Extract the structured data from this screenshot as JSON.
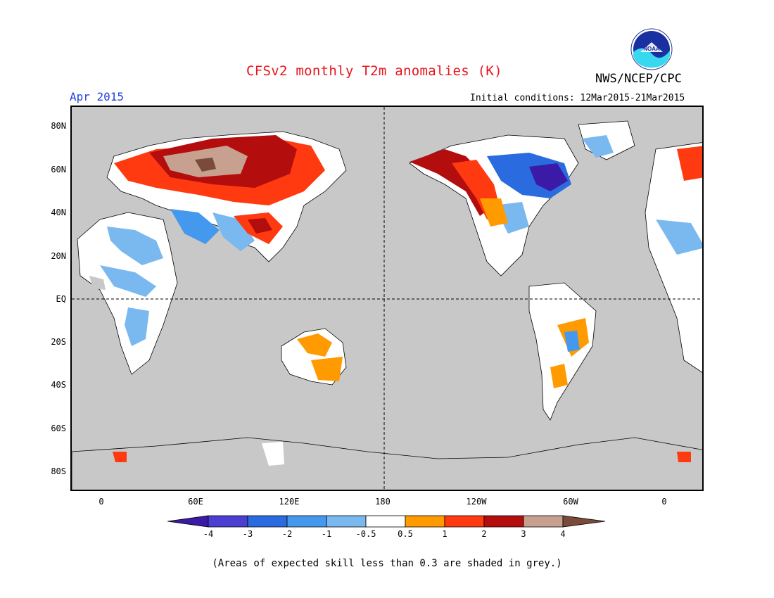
{
  "title": "CFSv2 monthly T2m anomalies (K)",
  "valid_month": "Apr 2015",
  "organization": "NWS/NCEP/CPC",
  "logo_text": "NOAA",
  "initial_conditions": "Initial conditions: 12Mar2015-21Mar2015",
  "footnote": "(Areas of expected skill less than 0.3 are shaded in grey.)",
  "map": {
    "lat_labels": [
      "80N",
      "60N",
      "40N",
      "20N",
      "EQ",
      "20S",
      "40S",
      "60S",
      "80S"
    ],
    "lon_labels": [
      "0",
      "60E",
      "120E",
      "180",
      "120W",
      "60W",
      "0"
    ],
    "ocean_color": "#c8c8c8"
  },
  "colorbar": {
    "labels": [
      "-4",
      "-3",
      "-2",
      "-1",
      "-0.5",
      "0.5",
      "1",
      "2",
      "3",
      "4"
    ],
    "colors": [
      "#3a1aa6",
      "#4a3fd0",
      "#2a6be0",
      "#4499ee",
      "#7ab8f0",
      "#ffffff",
      "#ff9a00",
      "#ff3a10",
      "#b40d0d",
      "#c8a090",
      "#7a4a3a"
    ]
  }
}
